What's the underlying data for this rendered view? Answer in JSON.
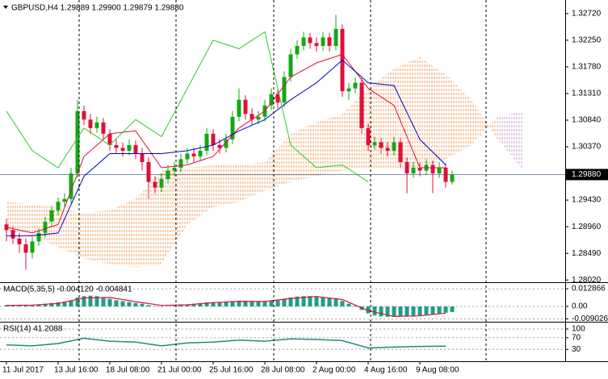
{
  "chart_data": [
    {
      "type": "candlestick",
      "title": "GBPUSD,H4  1.29889 1.29900 1.29879 1.29880",
      "up_color": "#14a814",
      "down_color": "#e0103a",
      "x": [
        0,
        1,
        2,
        3,
        4,
        5,
        6,
        7,
        8,
        9,
        10,
        11,
        12,
        13,
        14,
        15,
        16,
        17,
        18,
        19,
        20,
        21,
        22,
        23,
        24,
        25,
        26,
        27,
        28,
        29,
        30,
        31,
        32,
        33,
        34,
        35,
        36,
        37,
        38,
        39,
        40,
        41,
        42,
        43,
        44,
        45,
        46,
        47,
        48,
        49,
        50,
        51,
        52,
        53,
        54,
        55,
        56,
        57,
        58,
        59,
        60,
        61,
        62,
        63,
        64,
        65,
        66,
        67,
        68,
        69
      ],
      "open": [
        1.29,
        1.289,
        1.2875,
        1.2865,
        1.285,
        1.287,
        1.2885,
        1.2905,
        1.2925,
        1.294,
        1.2945,
        1.299,
        1.31,
        1.3085,
        1.307,
        1.308,
        1.306,
        1.304,
        1.3035,
        1.303,
        1.304,
        1.3025,
        1.301,
        1.2975,
        1.2965,
        1.298,
        1.2995,
        1.3,
        1.3015,
        1.3025,
        1.302,
        1.303,
        1.306,
        1.304,
        1.3035,
        1.305,
        1.309,
        1.312,
        1.3095,
        1.3085,
        1.309,
        1.311,
        1.313,
        1.3115,
        1.316,
        1.32,
        1.3215,
        1.323,
        1.322,
        1.3215,
        1.323,
        1.3215,
        1.3245,
        1.3135,
        1.314,
        1.315,
        1.307,
        1.304,
        1.3045,
        1.3035,
        1.303,
        1.3045,
        1.301,
        1.299,
        1.3,
        1.2995,
        1.3005,
        1.299,
        1.3,
        1.2975
      ],
      "high": [
        1.291,
        1.2898,
        1.2885,
        1.2875,
        1.2878,
        1.2893,
        1.2913,
        1.2933,
        1.2948,
        1.2955,
        1.3,
        1.312,
        1.311,
        1.3095,
        1.309,
        1.3088,
        1.3068,
        1.305,
        1.3045,
        1.305,
        1.3048,
        1.3035,
        1.3018,
        1.2985,
        1.299,
        1.3005,
        1.301,
        1.3025,
        1.3035,
        1.3035,
        1.304,
        1.307,
        1.3068,
        1.305,
        1.306,
        1.31,
        1.314,
        1.3128,
        1.3105,
        1.31,
        1.312,
        1.314,
        1.3138,
        1.317,
        1.321,
        1.3225,
        1.324,
        1.3238,
        1.323,
        1.324,
        1.3238,
        1.327,
        1.3253,
        1.315,
        1.316,
        1.3158,
        1.3078,
        1.3055,
        1.3053,
        1.3045,
        1.3055,
        1.3053,
        1.3018,
        1.301,
        1.301,
        1.3015,
        1.3013,
        1.301,
        1.3008,
        1.2995
      ],
      "low": [
        1.287,
        1.2865,
        1.285,
        1.282,
        1.284,
        1.2862,
        1.2877,
        1.2897,
        1.2917,
        1.293,
        1.2937,
        1.2982,
        1.3075,
        1.306,
        1.3062,
        1.305,
        1.303,
        1.3025,
        1.302,
        1.3022,
        1.3015,
        1.2995,
        1.2945,
        1.2955,
        1.2957,
        1.2972,
        1.2985,
        1.2992,
        1.3007,
        1.301,
        1.3012,
        1.3022,
        1.303,
        1.3025,
        1.3027,
        1.3042,
        1.3082,
        1.3085,
        1.3075,
        1.3077,
        1.3082,
        1.3102,
        1.3105,
        1.3107,
        1.3152,
        1.3192,
        1.3207,
        1.321,
        1.3205,
        1.3207,
        1.3205,
        1.3207,
        1.3125,
        1.312,
        1.3132,
        1.306,
        1.303,
        1.3032,
        1.3025,
        1.302,
        1.3022,
        1.3,
        1.2955,
        1.2982,
        1.2985,
        1.2987,
        1.2955,
        1.2982,
        1.2965,
        1.297
      ],
      "close": [
        1.289,
        1.2875,
        1.2865,
        1.285,
        1.287,
        1.2885,
        1.2905,
        1.2925,
        1.294,
        1.2945,
        1.299,
        1.31,
        1.3085,
        1.307,
        1.308,
        1.306,
        1.304,
        1.3035,
        1.303,
        1.304,
        1.3025,
        1.301,
        1.2975,
        1.2965,
        1.298,
        1.2995,
        1.3,
        1.3015,
        1.3025,
        1.302,
        1.303,
        1.306,
        1.304,
        1.3035,
        1.305,
        1.309,
        1.312,
        1.3095,
        1.3085,
        1.309,
        1.311,
        1.313,
        1.3115,
        1.316,
        1.32,
        1.3215,
        1.323,
        1.322,
        1.3215,
        1.323,
        1.3215,
        1.3245,
        1.3135,
        1.314,
        1.315,
        1.307,
        1.304,
        1.3045,
        1.3035,
        1.303,
        1.3045,
        1.301,
        1.299,
        1.3,
        1.2995,
        1.3005,
        1.299,
        1.3,
        1.2975,
        1.2988
      ],
      "lines": {
        "x": [
          0,
          4,
          8,
          12,
          16,
          20,
          24,
          28,
          32,
          36,
          40,
          44,
          48,
          52,
          56,
          60,
          64,
          68
        ],
        "series": [
          {
            "color": "#e0103a",
            "values": [
              1.2895,
              1.2885,
              1.29,
              1.302,
              1.306,
              1.3065,
              1.3,
              1.3005,
              1.302,
              1.307,
              1.31,
              1.316,
              1.3185,
              1.32,
              1.314,
              1.311,
              1.3,
              1.3
            ]
          },
          {
            "color": "#0000c8",
            "values": [
              1.288,
              1.288,
              1.2885,
              1.2985,
              1.3025,
              1.3025,
              1.3025,
              1.303,
              1.304,
              1.3065,
              1.3085,
              1.312,
              1.315,
              1.319,
              1.315,
              1.3145,
              1.305,
              1.3005
            ]
          },
          {
            "color": "#2ecc2e",
            "values": [
              1.31,
              1.303,
              1.3,
              1.307,
              1.304,
              1.3085,
              1.3055,
              1.314,
              1.3225,
              1.321,
              1.324,
              1.304,
              1.3,
              1.3005,
              1.2975,
              null,
              null,
              null
            ]
          }
        ]
      },
      "cloud": {
        "x": [
          0,
          4,
          8,
          12,
          16,
          20,
          24,
          28,
          32,
          36,
          40,
          44,
          48,
          52,
          56,
          60,
          64,
          68,
          72,
          76,
          80
        ],
        "span_a": [
          1.294,
          1.2935,
          1.293,
          1.292,
          1.2925,
          1.2945,
          1.2995,
          1.3,
          1.3005,
          1.3005,
          1.301,
          1.306,
          1.308,
          1.3095,
          1.314,
          1.3175,
          1.3195,
          1.3165,
          1.312,
          1.305,
          1.2995
        ],
        "span_b": [
          1.289,
          1.288,
          1.286,
          1.284,
          1.283,
          1.2825,
          1.283,
          1.29,
          1.293,
          1.294,
          1.296,
          1.2975,
          1.2985,
          1.2995,
          1.3,
          1.3,
          1.3,
          1.3015,
          1.304,
          1.309,
          1.31
        ],
        "bull_color": "#f0a060",
        "bear_color": "#c8a0d0"
      },
      "last_price": {
        "value": 1.2988,
        "label": "1.29880"
      },
      "xlim": [
        -1,
        86.5
      ],
      "xticks": [
        {
          "value": 0,
          "label": "11 Jul 2017"
        },
        {
          "value": 8,
          "label": "13 Jul 16:00"
        },
        {
          "value": 16,
          "label": "18 Jul 08:00"
        },
        {
          "value": 24,
          "label": "21 Jul 00:00"
        },
        {
          "value": 32,
          "label": "25 Jul 16:00"
        },
        {
          "value": 40,
          "label": "28 Jul 08:00"
        },
        {
          "value": 48,
          "label": "2 Aug 00:00"
        },
        {
          "value": 56,
          "label": "4 Aug 16:00"
        },
        {
          "value": 64,
          "label": "9 Aug 08:00"
        }
      ],
      "ylim": [
        1.2798,
        1.3296
      ],
      "yticks": [
        {
          "value": 1.3272,
          "label": "1.32720"
        },
        {
          "value": 1.3225,
          "label": "1.32250"
        },
        {
          "value": 1.3178,
          "label": "1.31780"
        },
        {
          "value": 1.3131,
          "label": "1.31310"
        },
        {
          "value": 1.3084,
          "label": "1.30840"
        },
        {
          "value": 1.3037,
          "label": "1.30370"
        },
        {
          "value": 1.2943,
          "label": "1.29430"
        },
        {
          "value": 1.2896,
          "label": "1.28960"
        },
        {
          "value": 1.2849,
          "label": "1.28490"
        },
        {
          "value": 1.2802,
          "label": "1.28020"
        }
      ],
      "grid": false
    },
    {
      "type": "bar",
      "title": "MACD(5,35,5) -0.004120 -0.004841",
      "color": "#1f9e89",
      "x": [
        0,
        1,
        2,
        3,
        4,
        5,
        6,
        7,
        8,
        9,
        10,
        11,
        12,
        13,
        14,
        15,
        16,
        17,
        18,
        19,
        20,
        21,
        22,
        23,
        24,
        25,
        26,
        27,
        28,
        29,
        30,
        31,
        32,
        33,
        34,
        35,
        36,
        37,
        38,
        39,
        40,
        41,
        42,
        43,
        44,
        45,
        46,
        47,
        48,
        49,
        50,
        51,
        52,
        53,
        54,
        55,
        56,
        57,
        58,
        59,
        60,
        61,
        62,
        63,
        64,
        65,
        66,
        67,
        68,
        69
      ],
      "values": [
        0.001,
        0.0012,
        0.001,
        0.0008,
        0.001,
        0.0015,
        0.002,
        0.0025,
        0.003,
        0.0035,
        0.0045,
        0.0065,
        0.0075,
        0.0078,
        0.0075,
        0.0065,
        0.0055,
        0.0045,
        0.0038,
        0.0032,
        0.0025,
        0.002,
        0.001,
        0.0003,
        0,
        0.0002,
        0.0005,
        0.001,
        0.0015,
        0.002,
        0.0025,
        0.003,
        0.0032,
        0.003,
        0.003,
        0.0035,
        0.0042,
        0.004,
        0.0038,
        0.0035,
        0.0035,
        0.004,
        0.0045,
        0.0055,
        0.0065,
        0.0072,
        0.0075,
        0.0075,
        0.007,
        0.0065,
        0.006,
        0.006,
        0.004,
        0.002,
        0.0005,
        -0.0025,
        -0.005,
        -0.0065,
        -0.0072,
        -0.0075,
        -0.0075,
        -0.007,
        -0.007,
        -0.0068,
        -0.0065,
        -0.006,
        -0.0055,
        -0.005,
        -0.0045,
        -0.0041
      ],
      "signal": {
        "color": "#e0103a",
        "x": [
          0,
          4,
          8,
          12,
          16,
          20,
          24,
          28,
          32,
          36,
          40,
          44,
          48,
          52,
          56,
          60,
          64,
          68
        ],
        "values": [
          0.0008,
          0.001,
          0.0022,
          0.0062,
          0.0065,
          0.0035,
          0.0008,
          0.0012,
          0.0028,
          0.0038,
          0.0036,
          0.0058,
          0.0072,
          0.005,
          -0.003,
          -0.0072,
          -0.0068,
          -0.0048
        ]
      },
      "ylim": [
        -0.0105,
        0.017
      ],
      "yticks": [
        0.012866,
        {
          "value": 0,
          "label": "0.00"
        },
        -0.009026
      ],
      "grid": true
    },
    {
      "type": "line",
      "title": "RSI(14) 41.2088",
      "color": "#1f8a80",
      "x": [
        0,
        4,
        8,
        12,
        16,
        20,
        24,
        28,
        32,
        36,
        40,
        44,
        48,
        52,
        56,
        60,
        64,
        68
      ],
      "values": [
        45,
        42,
        50,
        68,
        58,
        55,
        42,
        52,
        55,
        62,
        58,
        66,
        64,
        60,
        35,
        38,
        40,
        41.2088
      ],
      "ylim": [
        -8,
        122
      ],
      "yticks": [
        100,
        70,
        30
      ],
      "grid": true
    }
  ]
}
